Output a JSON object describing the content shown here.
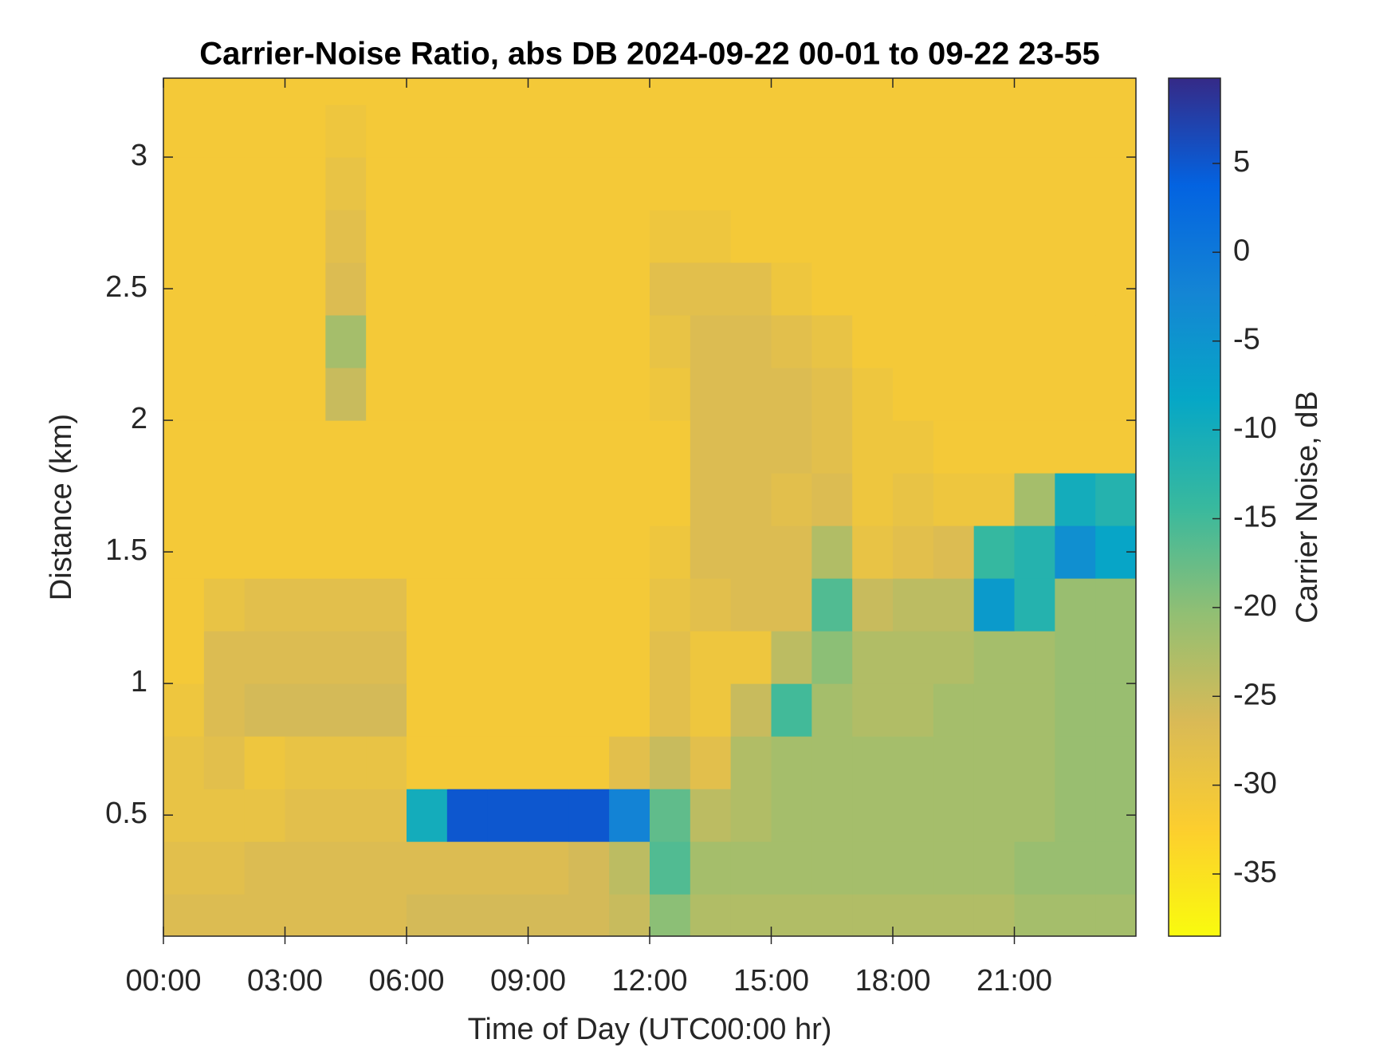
{
  "chart_data": {
    "type": "heatmap",
    "title": "Carrier-Noise Ratio, abs DB 2024-09-22 00-01 to 09-22 23-55",
    "x_label": "Time of Day (UTC00:00 hr)",
    "y_label": "Distance (km)",
    "colorbar_label": "Carrier Noise, dB",
    "colormap": "parula-reversed",
    "x": [
      0.5,
      1.5,
      2.5,
      3.5,
      4.5,
      5.5,
      6.5,
      7.5,
      8.5,
      9.5,
      10.5,
      11.5,
      12.5,
      13.5,
      14.5,
      15.5,
      16.5,
      17.5,
      18.5,
      19.5,
      20.5,
      21.5,
      22.5,
      23.5
    ],
    "y": [
      0.1,
      0.3,
      0.5,
      0.7,
      0.9,
      1.1,
      1.3,
      1.5,
      1.7,
      1.9,
      2.1,
      2.3,
      2.5,
      2.7,
      2.9,
      3.1,
      3.3
    ],
    "z": [
      [
        -27,
        -27,
        -27,
        -27,
        -27,
        -27,
        -26,
        -26,
        -26,
        -26,
        -26,
        -25,
        -20,
        -23,
        -23,
        -23,
        -23,
        -23,
        -23,
        -23,
        -23,
        -22,
        -22,
        -22
      ],
      [
        -28,
        -28,
        -27,
        -27,
        -27,
        -27,
        -27,
        -27,
        -27,
        -27,
        -26,
        -24,
        -16,
        -22,
        -22,
        -22,
        -22,
        -22,
        -22,
        -22,
        -22,
        -21,
        -21,
        -21
      ],
      [
        -29,
        -29,
        -29,
        -28,
        -28,
        -28,
        -10,
        5,
        5,
        5,
        5,
        -2,
        -17,
        -24,
        -23,
        -22,
        -22,
        -22,
        -22,
        -22,
        -22,
        -22,
        -21,
        -21
      ],
      [
        -29,
        -28,
        -30,
        -29,
        -29,
        -29,
        -31,
        -31,
        -31,
        -31,
        -31,
        -28,
        -25,
        -28,
        -23,
        -22,
        -22,
        -22,
        -22,
        -22,
        -22,
        -22,
        -21,
        -21
      ],
      [
        -30,
        -27,
        -26,
        -26,
        -26,
        -26,
        -31,
        -31,
        -31,
        -31,
        -31,
        -31,
        -28,
        -30,
        -25,
        -15,
        -22,
        -23,
        -23,
        -22,
        -22,
        -22,
        -21,
        -21
      ],
      [
        -31,
        -27,
        -27,
        -27,
        -27,
        -27,
        -31,
        -31,
        -31,
        -31,
        -31,
        -31,
        -28,
        -30,
        -30,
        -24,
        -20,
        -23,
        -23,
        -23,
        -22,
        -22,
        -21,
        -21
      ],
      [
        -31,
        -29,
        -28,
        -28,
        -28,
        -28,
        -31,
        -31,
        -31,
        -31,
        -31,
        -31,
        -29,
        -28,
        -27,
        -27,
        -16,
        -25,
        -24,
        -24,
        -6,
        -12,
        -21,
        -21
      ],
      [
        -31,
        -31,
        -31,
        -31,
        -31,
        -31,
        -31,
        -31,
        -31,
        -31,
        -31,
        -31,
        -30,
        -27,
        -27,
        -27,
        -23,
        -29,
        -28,
        -27,
        -14,
        -12,
        -4,
        -8
      ],
      [
        -31,
        -31,
        -31,
        -31,
        -31,
        -31,
        -31,
        -31,
        -31,
        -31,
        -31,
        -31,
        -31,
        -27,
        -27,
        -28,
        -27,
        -30,
        -29,
        -30,
        -30,
        -22,
        -10,
        -12
      ],
      [
        -31,
        -31,
        -31,
        -31,
        -31,
        -31,
        -31,
        -31,
        -31,
        -31,
        -31,
        -31,
        -31,
        -27,
        -27,
        -27,
        -28,
        -30,
        -30,
        -31,
        -31,
        -31,
        -31,
        -31
      ],
      [
        -31,
        -31,
        -31,
        -31,
        -25,
        -31,
        -31,
        -31,
        -31,
        -31,
        -31,
        -31,
        -30,
        -27,
        -27,
        -27,
        -28,
        -30,
        -31,
        -31,
        -31,
        -31,
        -31,
        -31
      ],
      [
        -31,
        -31,
        -31,
        -31,
        -22,
        -31,
        -31,
        -31,
        -31,
        -31,
        -31,
        -31,
        -29,
        -27,
        -27,
        -28,
        -29,
        -31,
        -31,
        -31,
        -31,
        -31,
        -31,
        -31
      ],
      [
        -31,
        -31,
        -31,
        -31,
        -27,
        -31,
        -31,
        -31,
        -31,
        -31,
        -31,
        -31,
        -28,
        -28,
        -28,
        -30,
        -31,
        -31,
        -31,
        -31,
        -31,
        -31,
        -31,
        -31
      ],
      [
        -31,
        -31,
        -31,
        -31,
        -28,
        -31,
        -31,
        -31,
        -31,
        -31,
        -31,
        -31,
        -30,
        -30,
        -31,
        -31,
        -31,
        -31,
        -31,
        -31,
        -31,
        -31,
        -31,
        -31
      ],
      [
        -31,
        -31,
        -31,
        -31,
        -29,
        -31,
        -31,
        -31,
        -31,
        -31,
        -31,
        -31,
        -31,
        -31,
        -31,
        -31,
        -31,
        -31,
        -31,
        -31,
        -31,
        -31,
        -31,
        -31
      ],
      [
        -31,
        -31,
        -31,
        -31,
        -30,
        -31,
        -31,
        -31,
        -31,
        -31,
        -31,
        -31,
        -31,
        -31,
        -31,
        -31,
        -31,
        -31,
        -31,
        -31,
        -31,
        -31,
        -31,
        -31
      ],
      [
        -31,
        -31,
        -31,
        -31,
        -31,
        -31,
        -31,
        -31,
        -31,
        -31,
        -31,
        -31,
        -31,
        -31,
        -31,
        -31,
        -31,
        -31,
        -31,
        -31,
        -31,
        -31,
        -31,
        -31
      ]
    ],
    "xlim": [
      0,
      24
    ],
    "ylim": [
      0.04,
      3.3
    ],
    "clim": [
      -38.5,
      9.8
    ],
    "xticks": [
      {
        "value": 0,
        "label": "00:00"
      },
      {
        "value": 3,
        "label": "03:00"
      },
      {
        "value": 6,
        "label": "06:00"
      },
      {
        "value": 9,
        "label": "09:00"
      },
      {
        "value": 12,
        "label": "12:00"
      },
      {
        "value": 15,
        "label": "15:00"
      },
      {
        "value": 18,
        "label": "18:00"
      },
      {
        "value": 21,
        "label": "21:00"
      }
    ],
    "yticks": [
      0.5,
      1,
      1.5,
      2,
      2.5,
      3
    ],
    "cticks": [
      -35,
      -30,
      -25,
      -20,
      -15,
      -10,
      -5,
      0,
      5
    ]
  }
}
